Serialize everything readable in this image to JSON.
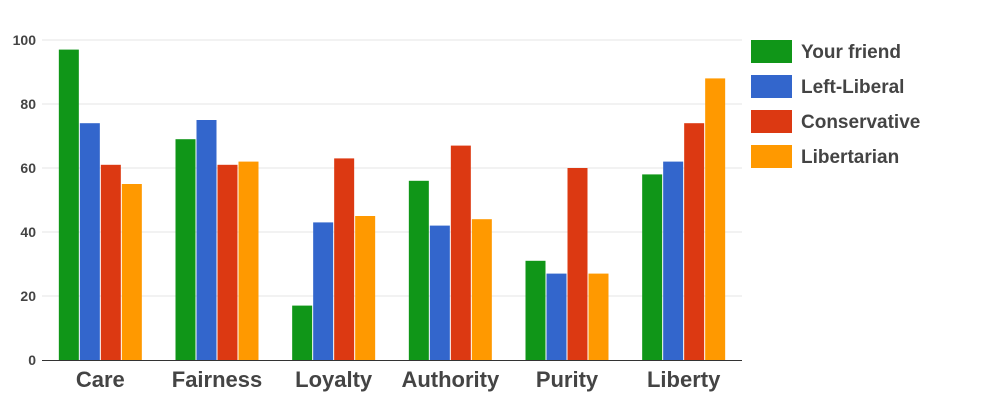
{
  "chart_data": {
    "type": "bar",
    "categories": [
      "Care",
      "Fairness",
      "Loyalty",
      "Authority",
      "Purity",
      "Liberty"
    ],
    "series": [
      {
        "name": "Your friend",
        "color": "#109618",
        "values": [
          97,
          69,
          17,
          56,
          31,
          58
        ]
      },
      {
        "name": "Left-Liberal",
        "color": "#3366cc",
        "values": [
          74,
          75,
          43,
          42,
          27,
          62
        ]
      },
      {
        "name": "Conservative",
        "color": "#dc3912",
        "values": [
          61,
          61,
          63,
          67,
          60,
          74
        ]
      },
      {
        "name": "Libertarian",
        "color": "#ff9900",
        "values": [
          55,
          62,
          45,
          44,
          27,
          88
        ]
      }
    ],
    "title": "",
    "xlabel": "",
    "ylabel": "",
    "ylim": [
      0,
      100
    ],
    "yticks": [
      0,
      20,
      40,
      60,
      80,
      100
    ],
    "grid": true,
    "legend_position": "right"
  }
}
